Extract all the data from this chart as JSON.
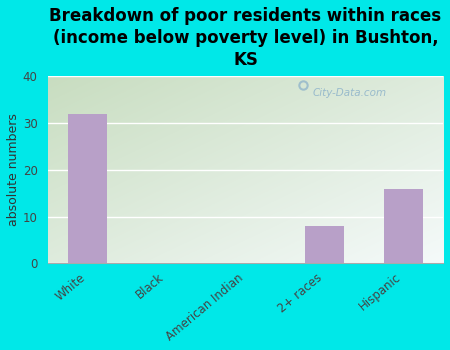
{
  "title": "Breakdown of poor residents within races\n(income below poverty level) in Bushton,\nKS",
  "categories": [
    "White",
    "Black",
    "American Indian",
    "2+ races",
    "Hispanic"
  ],
  "values": [
    32,
    0,
    0,
    8,
    16
  ],
  "bar_color": "#b8a0c8",
  "ylabel": "absolute numbers",
  "ylim": [
    0,
    40
  ],
  "yticks": [
    0,
    10,
    20,
    30,
    40
  ],
  "background_color": "#00e8e8",
  "plot_bg_topleft": "#c8ddc0",
  "plot_bg_bottomright": "#f0f8f8",
  "watermark_text": "City-Data.com",
  "watermark_color": "#99bbcc",
  "title_fontsize": 12,
  "ylabel_fontsize": 9,
  "tick_fontsize": 8.5
}
